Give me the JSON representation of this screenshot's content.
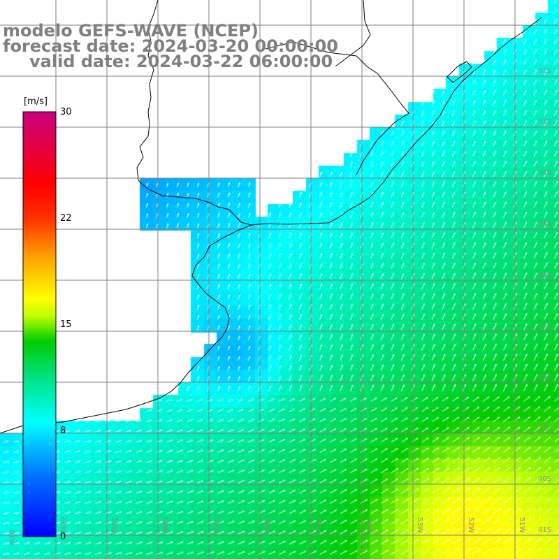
{
  "header": {
    "line1": "modelo GEFS-WAVE (NCEP)",
    "line2": "forecast date: 2024-03-20 00:00:00",
    "line3": "valid date: 2024-03-22 06:00:00"
  },
  "colorbar": {
    "unit": "[m/s]",
    "ticks": [
      "30",
      "22",
      "15",
      "8",
      "0"
    ],
    "tick_values": [
      30,
      22,
      15,
      8,
      0
    ],
    "range": [
      0,
      30
    ],
    "colors": [
      "#0000ff",
      "#00a8ff",
      "#00ffff",
      "#00d080",
      "#00cc00",
      "#ffff00",
      "#ff8000",
      "#ff0000",
      "#c80080"
    ]
  },
  "map": {
    "lat_labels": [
      "32S",
      "33S",
      "34S",
      "35S",
      "36S",
      "37S",
      "38S",
      "39S",
      "40S",
      "41S"
    ],
    "lon_labels": [
      "61W",
      "60W",
      "59W",
      "58W",
      "57W",
      "56W",
      "55W",
      "54W",
      "53W",
      "52W",
      "51W"
    ],
    "land_color": "#ffffff",
    "grid_color": "#7f7f7f",
    "arrow_color": "#ffffff"
  }
}
